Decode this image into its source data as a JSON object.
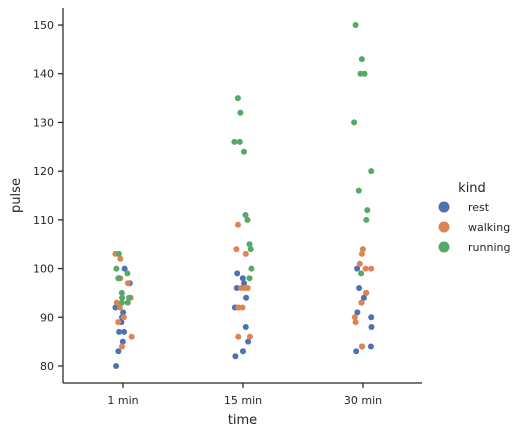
{
  "chart_data": {
    "type": "scatter",
    "subtype": "strip",
    "xlabel": "time",
    "ylabel": "pulse",
    "categories": [
      "1 min",
      "15 min",
      "30 min"
    ],
    "ylim": [
      76.5,
      153.5
    ],
    "yticks": [
      80,
      90,
      100,
      110,
      120,
      130,
      140,
      150
    ],
    "grid": false,
    "legend": {
      "title": "kind",
      "position": "right",
      "entries": [
        "rest",
        "walking",
        "running"
      ]
    },
    "series": [
      {
        "name": "rest",
        "color": "#4c72b0",
        "points": [
          {
            "x": "1 min",
            "y": 85
          },
          {
            "x": "1 min",
            "y": 87
          },
          {
            "x": "1 min",
            "y": 80
          },
          {
            "x": "1 min",
            "y": 83
          },
          {
            "x": "1 min",
            "y": 90
          },
          {
            "x": "1 min",
            "y": 91
          },
          {
            "x": "1 min",
            "y": 92
          },
          {
            "x": "1 min",
            "y": 97
          },
          {
            "x": "1 min",
            "y": 100
          },
          {
            "x": "1 min",
            "y": 89
          },
          {
            "x": "1 min",
            "y": 87
          },
          {
            "x": "15 min",
            "y": 85
          },
          {
            "x": "15 min",
            "y": 88
          },
          {
            "x": "15 min",
            "y": 82
          },
          {
            "x": "15 min",
            "y": 83
          },
          {
            "x": "15 min",
            "y": 92
          },
          {
            "x": "15 min",
            "y": 94
          },
          {
            "x": "15 min",
            "y": 96
          },
          {
            "x": "15 min",
            "y": 97
          },
          {
            "x": "15 min",
            "y": 98
          },
          {
            "x": "15 min",
            "y": 99
          },
          {
            "x": "15 min",
            "y": 92
          },
          {
            "x": "30 min",
            "y": 84
          },
          {
            "x": "30 min",
            "y": 88
          },
          {
            "x": "30 min",
            "y": 83
          },
          {
            "x": "30 min",
            "y": 84
          },
          {
            "x": "30 min",
            "y": 90
          },
          {
            "x": "30 min",
            "y": 91
          },
          {
            "x": "30 min",
            "y": 93
          },
          {
            "x": "30 min",
            "y": 94
          },
          {
            "x": "30 min",
            "y": 95
          },
          {
            "x": "30 min",
            "y": 96
          },
          {
            "x": "30 min",
            "y": 100
          }
        ]
      },
      {
        "name": "walking",
        "color": "#dd8452",
        "points": [
          {
            "x": "1 min",
            "y": 86
          },
          {
            "x": "1 min",
            "y": 84
          },
          {
            "x": "1 min",
            "y": 89
          },
          {
            "x": "1 min",
            "y": 90
          },
          {
            "x": "1 min",
            "y": 92
          },
          {
            "x": "1 min",
            "y": 93
          },
          {
            "x": "1 min",
            "y": 97
          },
          {
            "x": "1 min",
            "y": 98
          },
          {
            "x": "1 min",
            "y": 102
          },
          {
            "x": "1 min",
            "y": 103
          },
          {
            "x": "1 min",
            "y": 94
          },
          {
            "x": "15 min",
            "y": 86
          },
          {
            "x": "15 min",
            "y": 86
          },
          {
            "x": "15 min",
            "y": 92
          },
          {
            "x": "15 min",
            "y": 92
          },
          {
            "x": "15 min",
            "y": 96
          },
          {
            "x": "15 min",
            "y": 96
          },
          {
            "x": "15 min",
            "y": 96
          },
          {
            "x": "15 min",
            "y": 103
          },
          {
            "x": "15 min",
            "y": 104
          },
          {
            "x": "15 min",
            "y": 109
          },
          {
            "x": "30 min",
            "y": 84
          },
          {
            "x": "30 min",
            "y": 89
          },
          {
            "x": "30 min",
            "y": 90
          },
          {
            "x": "30 min",
            "y": 93
          },
          {
            "x": "30 min",
            "y": 95
          },
          {
            "x": "30 min",
            "y": 100
          },
          {
            "x": "30 min",
            "y": 100
          },
          {
            "x": "30 min",
            "y": 101
          },
          {
            "x": "30 min",
            "y": 103
          },
          {
            "x": "30 min",
            "y": 104
          }
        ]
      },
      {
        "name": "running",
        "color": "#55a868",
        "points": [
          {
            "x": "1 min",
            "y": 93
          },
          {
            "x": "1 min",
            "y": 94
          },
          {
            "x": "1 min",
            "y": 94
          },
          {
            "x": "1 min",
            "y": 95
          },
          {
            "x": "1 min",
            "y": 98
          },
          {
            "x": "1 min",
            "y": 98
          },
          {
            "x": "1 min",
            "y": 99
          },
          {
            "x": "1 min",
            "y": 100
          },
          {
            "x": "1 min",
            "y": 103
          },
          {
            "x": "1 min",
            "y": 93
          },
          {
            "x": "15 min",
            "y": 98
          },
          {
            "x": "15 min",
            "y": 100
          },
          {
            "x": "15 min",
            "y": 104
          },
          {
            "x": "15 min",
            "y": 105
          },
          {
            "x": "15 min",
            "y": 110
          },
          {
            "x": "15 min",
            "y": 111
          },
          {
            "x": "15 min",
            "y": 124
          },
          {
            "x": "15 min",
            "y": 126
          },
          {
            "x": "15 min",
            "y": 126
          },
          {
            "x": "15 min",
            "y": 132
          },
          {
            "x": "15 min",
            "y": 135
          },
          {
            "x": "30 min",
            "y": 99
          },
          {
            "x": "30 min",
            "y": 110
          },
          {
            "x": "30 min",
            "y": 112
          },
          {
            "x": "30 min",
            "y": 116
          },
          {
            "x": "30 min",
            "y": 120
          },
          {
            "x": "30 min",
            "y": 130
          },
          {
            "x": "30 min",
            "y": 140
          },
          {
            "x": "30 min",
            "y": 140
          },
          {
            "x": "30 min",
            "y": 143
          },
          {
            "x": "30 min",
            "y": 150
          }
        ]
      }
    ]
  }
}
